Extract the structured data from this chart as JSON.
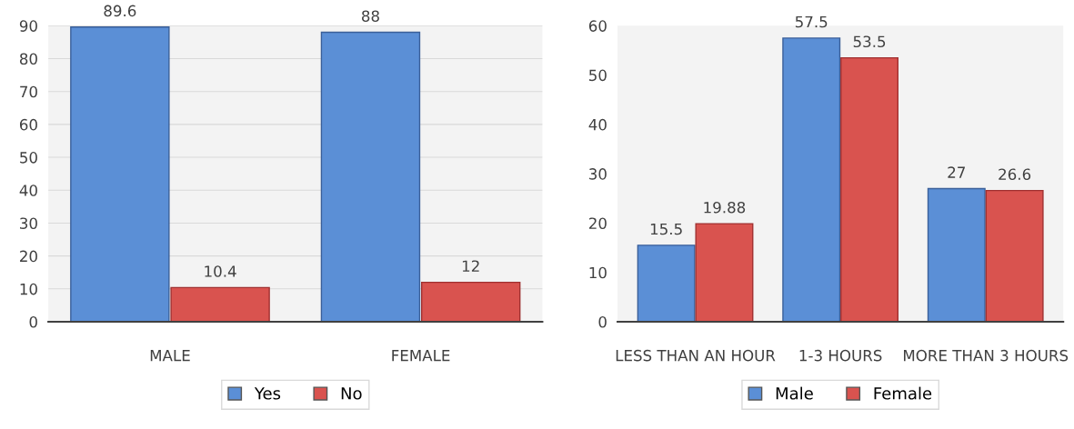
{
  "chart_data": [
    {
      "type": "bar",
      "categories": [
        "MALE",
        "FEMALE"
      ],
      "series": [
        {
          "name": "Yes",
          "color": "#5b8fd6",
          "values": [
            89.6,
            88
          ]
        },
        {
          "name": "No",
          "color": "#d9534f",
          "values": [
            10.4,
            12
          ]
        }
      ],
      "ylim": [
        0,
        90
      ],
      "yticks": [
        0,
        10,
        20,
        30,
        40,
        50,
        60,
        70,
        80,
        90
      ],
      "grid": "y",
      "legend": "bottom",
      "data_labels": true
    },
    {
      "type": "bar",
      "categories": [
        "LESS THAN AN HOUR",
        "1-3 HOURS",
        "MORE THAN 3 HOURS"
      ],
      "series": [
        {
          "name": "Male",
          "color": "#5b8fd6",
          "values": [
            15.5,
            57.5,
            27
          ]
        },
        {
          "name": "Female",
          "color": "#d9534f",
          "values": [
            19.88,
            53.5,
            26.6
          ]
        }
      ],
      "ylim": [
        0,
        60
      ],
      "yticks": [
        0,
        10,
        20,
        30,
        40,
        50,
        60
      ],
      "grid": false,
      "legend": "bottom",
      "data_labels": true
    }
  ]
}
